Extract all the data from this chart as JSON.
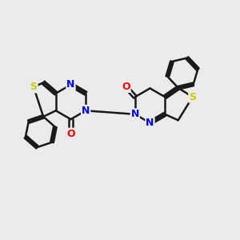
{
  "bg_color": "#ebebeb",
  "bond_color": "#1a1a1a",
  "N_color": "#0000ff",
  "O_color": "#ff0000",
  "S_color": "#cccc00",
  "bond_width": 1.8,
  "font_size": 9,
  "figsize": [
    3.0,
    3.0
  ],
  "dpi": 100,
  "xlim": [
    0,
    10
  ],
  "ylim": [
    0,
    10
  ]
}
